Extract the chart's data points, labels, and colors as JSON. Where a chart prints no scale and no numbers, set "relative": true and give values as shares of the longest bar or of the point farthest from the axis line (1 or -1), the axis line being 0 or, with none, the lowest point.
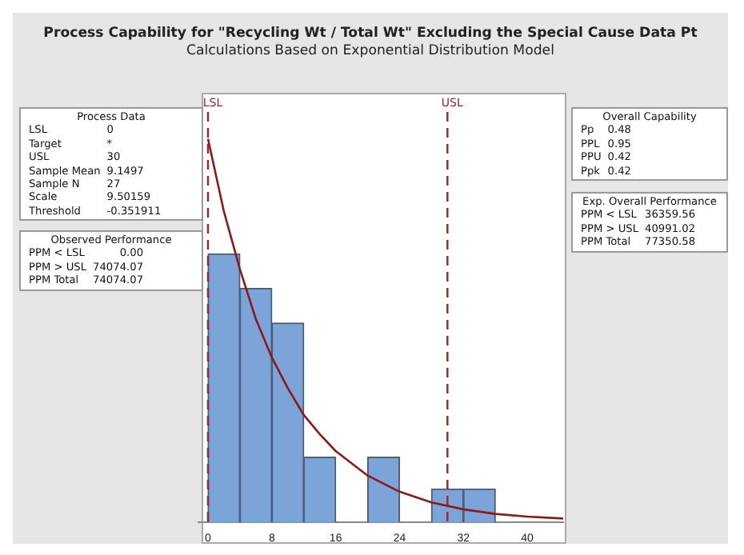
{
  "chart_data": {
    "type": "histogram",
    "title": "Process Capability for \"Recycling Wt / Total Wt\" Excluding the Special Cause Data Pt",
    "subtitle": "Calculations Based on Exponential Distribution Model",
    "relative": true,
    "bins": [
      0,
      4,
      8,
      12,
      16,
      20,
      24,
      28,
      32,
      36
    ],
    "values": [
      0.7,
      0.61,
      0.52,
      0.17,
      0,
      0.17,
      0,
      0.087,
      0.087
    ],
    "color": "#7da4d8",
    "series": [
      {
        "type": "line",
        "color": "#8b1a1a",
        "x": [
          0,
          2,
          4,
          6,
          8,
          10,
          12,
          14,
          16,
          20,
          24,
          28,
          32,
          36,
          40,
          44.5
        ],
        "values": [
          1,
          0.81,
          0.66,
          0.53,
          0.43,
          0.35,
          0.28,
          0.23,
          0.186,
          0.122,
          0.08,
          0.052,
          0.034,
          0.022,
          0.015,
          0.01
        ]
      }
    ],
    "xlim": [
      -1.2,
      44.5
    ],
    "xticks": [
      0,
      8,
      16,
      24,
      32,
      40
    ],
    "ref_lines": [
      {
        "axis": "x",
        "value": 0,
        "label": "LSL",
        "color": "#a0242a",
        "line_style": "dashed"
      },
      {
        "axis": "x",
        "value": 30,
        "label": "USL",
        "color": "#a0242a",
        "line_style": "dashed"
      }
    ],
    "annotations": [
      "Process Data\nLSL\t0\nTarget\t*\nUSL\t30\nSample Mean\t9.1497\nSample N\t27\nScale\t9.50159\nThreshold\t-0.351911",
      "Observed Performance\nPPM < LSL\t0.00\nPPM > USL\t74074.07\nPPM Total\t74074.07",
      "Overall Capability\nPp\t0.48\nPPL\t0.95\nPPU\t0.42\nPpk\t0.42",
      "Exp. Overall Performance\nPPM < LSL\t36359.56\nPPM > USL\t40991.02\nPPM Total\t77350.58"
    ],
    "grid": false,
    "legend": false,
    "marker": "none"
  }
}
